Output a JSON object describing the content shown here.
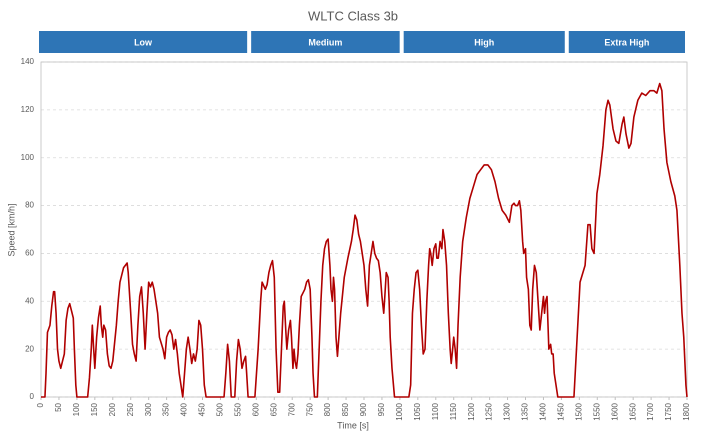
{
  "chart_data": {
    "type": "line",
    "title": "WLTC Class 3b",
    "xlabel": "Time [s]",
    "ylabel": "Speed [km/h]",
    "color": "#b00000",
    "grid": true,
    "phases": [
      {
        "label": "Low",
        "start": 0,
        "end": 580
      },
      {
        "label": "Medium",
        "start": 580,
        "end": 1005
      },
      {
        "label": "High",
        "start": 1005,
        "end": 1465
      },
      {
        "label": "Extra High",
        "start": 1465,
        "end": 1800
      }
    ],
    "xlim": [
      0,
      1800
    ],
    "xticks": [
      0,
      50,
      100,
      150,
      200,
      250,
      300,
      350,
      400,
      450,
      500,
      550,
      600,
      650,
      700,
      750,
      800,
      850,
      900,
      950,
      1000,
      1050,
      1100,
      1150,
      1200,
      1250,
      1300,
      1350,
      1400,
      1450,
      1500,
      1550,
      1600,
      1650,
      1700,
      1750,
      1800
    ],
    "ylim": [
      0,
      140
    ],
    "yticks": [
      0,
      20,
      40,
      60,
      80,
      100,
      120,
      140
    ],
    "x": [
      0,
      11,
      14,
      18,
      25,
      30,
      35,
      38,
      42,
      46,
      50,
      55,
      60,
      65,
      70,
      75,
      80,
      85,
      90,
      93,
      97,
      100,
      130,
      135,
      140,
      143,
      146,
      150,
      155,
      160,
      165,
      168,
      172,
      175,
      180,
      185,
      190,
      195,
      200,
      210,
      215,
      220,
      230,
      240,
      243,
      250,
      255,
      260,
      265,
      270,
      275,
      280,
      285,
      290,
      295,
      300,
      305,
      310,
      315,
      320,
      325,
      330,
      340,
      345,
      350,
      355,
      360,
      365,
      370,
      375,
      380,
      385,
      392,
      395,
      400,
      405,
      410,
      415,
      420,
      425,
      430,
      435,
      440,
      445,
      450,
      455,
      460,
      510,
      515,
      520,
      525,
      530,
      540,
      545,
      550,
      555,
      560,
      565,
      570,
      573,
      577,
      596,
      605,
      612,
      616,
      625,
      630,
      635,
      640,
      645,
      650,
      655,
      660,
      665,
      670,
      675,
      678,
      682,
      685,
      690,
      695,
      698,
      702,
      705,
      708,
      712,
      716,
      720,
      725,
      735,
      740,
      745,
      750,
      755,
      758,
      762,
      770,
      775,
      780,
      785,
      790,
      795,
      800,
      805,
      808,
      812,
      815,
      818,
      822,
      826,
      830,
      835,
      845,
      855,
      865,
      870,
      875,
      880,
      885,
      890,
      895,
      900,
      905,
      910,
      915,
      920,
      925,
      930,
      935,
      940,
      945,
      950,
      955,
      958,
      962,
      967,
      970,
      973,
      978,
      985,
      1025,
      1030,
      1035,
      1040,
      1045,
      1050,
      1055,
      1060,
      1065,
      1070,
      1075,
      1080,
      1083,
      1086,
      1090,
      1095,
      1100,
      1103,
      1107,
      1112,
      1117,
      1120,
      1125,
      1130,
      1135,
      1140,
      1143,
      1147,
      1150,
      1154,
      1158,
      1162,
      1168,
      1175,
      1185,
      1195,
      1205,
      1215,
      1225,
      1235,
      1245,
      1255,
      1265,
      1275,
      1285,
      1295,
      1305,
      1312,
      1318,
      1322,
      1328,
      1333,
      1337,
      1342,
      1345,
      1350,
      1353,
      1358,
      1362,
      1366,
      1370,
      1375,
      1380,
      1385,
      1390,
      1395,
      1400,
      1403,
      1406,
      1410,
      1415,
      1420,
      1423,
      1427,
      1430,
      1440,
      1485,
      1502,
      1516,
      1524,
      1530,
      1535,
      1541,
      1549,
      1557,
      1566,
      1574,
      1580,
      1585,
      1594,
      1602,
      1610,
      1619,
      1624,
      1630,
      1638,
      1644,
      1652,
      1663,
      1674,
      1685,
      1697,
      1708,
      1716,
      1724,
      1730,
      1736,
      1744,
      1755,
      1766,
      1772,
      1780,
      1786,
      1791,
      1797,
      1800
    ],
    "values": [
      0,
      0,
      10,
      27,
      30,
      38,
      44,
      44,
      35,
      20,
      15,
      12,
      15,
      18,
      32,
      37,
      39,
      36,
      33,
      20,
      5,
      0,
      0,
      8,
      20,
      30,
      22,
      12,
      25,
      33,
      38,
      30,
      25,
      30,
      28,
      18,
      13,
      12,
      15,
      30,
      40,
      48,
      54,
      56,
      52,
      35,
      22,
      18,
      15,
      30,
      42,
      46,
      35,
      20,
      35,
      48,
      46,
      48,
      45,
      40,
      35,
      25,
      20,
      16,
      25,
      27,
      28,
      26,
      20,
      24,
      18,
      10,
      3,
      0,
      10,
      20,
      25,
      20,
      14,
      18,
      15,
      20,
      32,
      30,
      20,
      5,
      0,
      0,
      10,
      22,
      15,
      0,
      0,
      15,
      24,
      20,
      12,
      15,
      17,
      10,
      0,
      0,
      20,
      40,
      48,
      45,
      47,
      52,
      55,
      57,
      50,
      20,
      2,
      2,
      20,
      38,
      40,
      28,
      20,
      28,
      32,
      25,
      12,
      20,
      15,
      12,
      18,
      30,
      42,
      45,
      48,
      49,
      45,
      25,
      10,
      0,
      0,
      20,
      40,
      55,
      62,
      65,
      66,
      55,
      45,
      40,
      50,
      45,
      25,
      17,
      25,
      35,
      50,
      58,
      65,
      70,
      76,
      74,
      68,
      65,
      60,
      55,
      45,
      38,
      55,
      60,
      65,
      60,
      58,
      57,
      52,
      42,
      35,
      42,
      52,
      50,
      40,
      25,
      12,
      0,
      0,
      5,
      35,
      45,
      52,
      53,
      45,
      30,
      18,
      20,
      40,
      55,
      62,
      60,
      55,
      62,
      64,
      58,
      58,
      65,
      62,
      70,
      65,
      55,
      35,
      20,
      14,
      20,
      25,
      20,
      12,
      30,
      50,
      65,
      75,
      83,
      88,
      93,
      95,
      97,
      97,
      95,
      90,
      83,
      78,
      76,
      73,
      80,
      81,
      80,
      80,
      82,
      78,
      65,
      60,
      62,
      50,
      45,
      30,
      28,
      45,
      55,
      52,
      40,
      28,
      35,
      42,
      35,
      40,
      42,
      20,
      22,
      18,
      18,
      10,
      0,
      0,
      48,
      55,
      72,
      72,
      62,
      60,
      85,
      93,
      105,
      120,
      124,
      122,
      112,
      107,
      106,
      114,
      117,
      110,
      104,
      106,
      117,
      124,
      127,
      126,
      128,
      128,
      127,
      131,
      128,
      112,
      98,
      90,
      84,
      78,
      55,
      35,
      25,
      5,
      0
    ]
  }
}
